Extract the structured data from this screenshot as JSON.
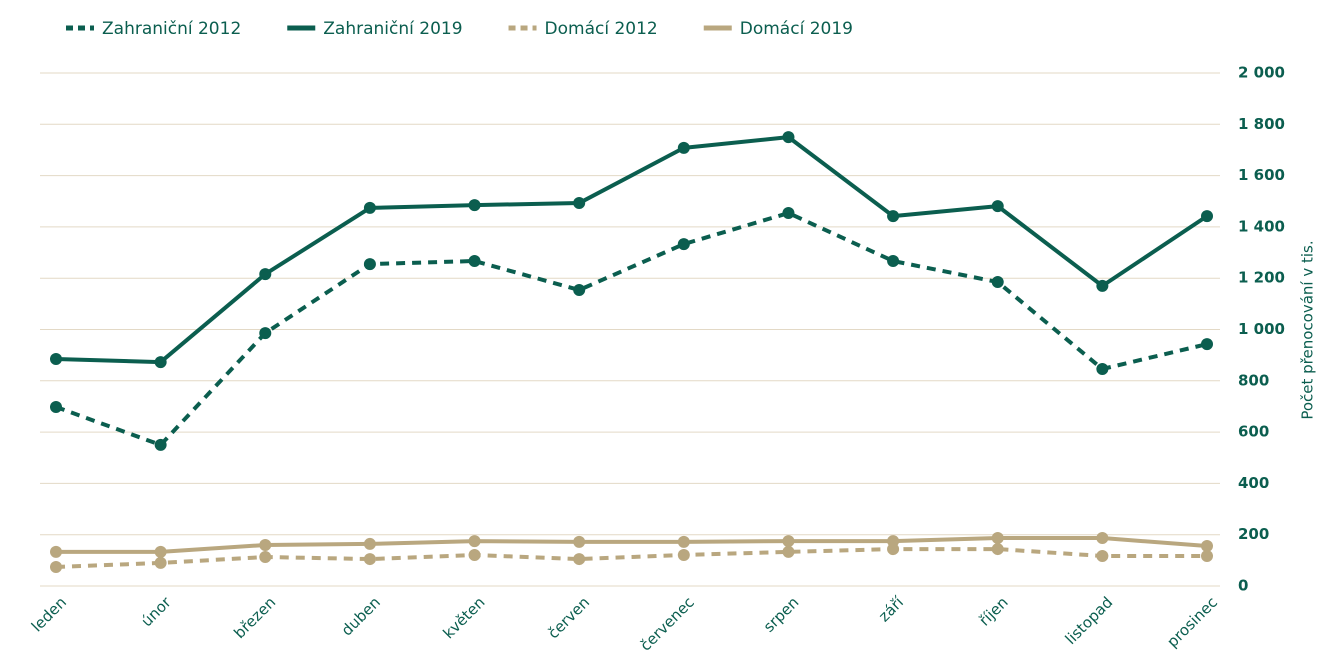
{
  "chart_data": {
    "type": "line",
    "y_label": "Počet přenocování v tis.",
    "categories": [
      "leden",
      "únor",
      "březen",
      "duben",
      "květen",
      "červen",
      "červenec",
      "srpen",
      "září",
      "říjen",
      "listopad",
      "prosinec"
    ],
    "series": [
      {
        "name": "Zahraniční 2012",
        "color": "#0b5e4f",
        "dashed": true,
        "values": [
          698,
          550,
          986,
          1255,
          1267,
          1154,
          1333,
          1454,
          1267,
          1185,
          846,
          943
        ]
      },
      {
        "name": "Zahraniční 2019",
        "color": "#0b5e4f",
        "dashed": false,
        "values": [
          885,
          873,
          1216,
          1474,
          1485,
          1493,
          1708,
          1750,
          1442,
          1481,
          1170,
          1442
        ]
      },
      {
        "name": "Domácí 2012",
        "color": "#b9a77f",
        "dashed": true,
        "values": [
          74,
          90,
          113,
          105,
          121,
          105,
          121,
          133,
          144,
          144,
          117,
          117
        ]
      },
      {
        "name": "Domácí 2019",
        "color": "#b9a77f",
        "dashed": false,
        "values": [
          133,
          133,
          160,
          164,
          175,
          172,
          172,
          175,
          175,
          187,
          187,
          156
        ]
      }
    ],
    "ylim": [
      0,
      2000
    ],
    "yticks": [
      0,
      200,
      400,
      600,
      800,
      {
        "value": 1000,
        "label": "1 000"
      },
      {
        "value": 1200,
        "label": "1 200"
      },
      {
        "value": 1400,
        "label": "1 400"
      },
      {
        "value": 1600,
        "label": "1 600"
      },
      {
        "value": 1800,
        "label": "1 800"
      },
      {
        "value": 2000,
        "label": "2 000"
      }
    ],
    "grid": true,
    "legend": "top"
  }
}
